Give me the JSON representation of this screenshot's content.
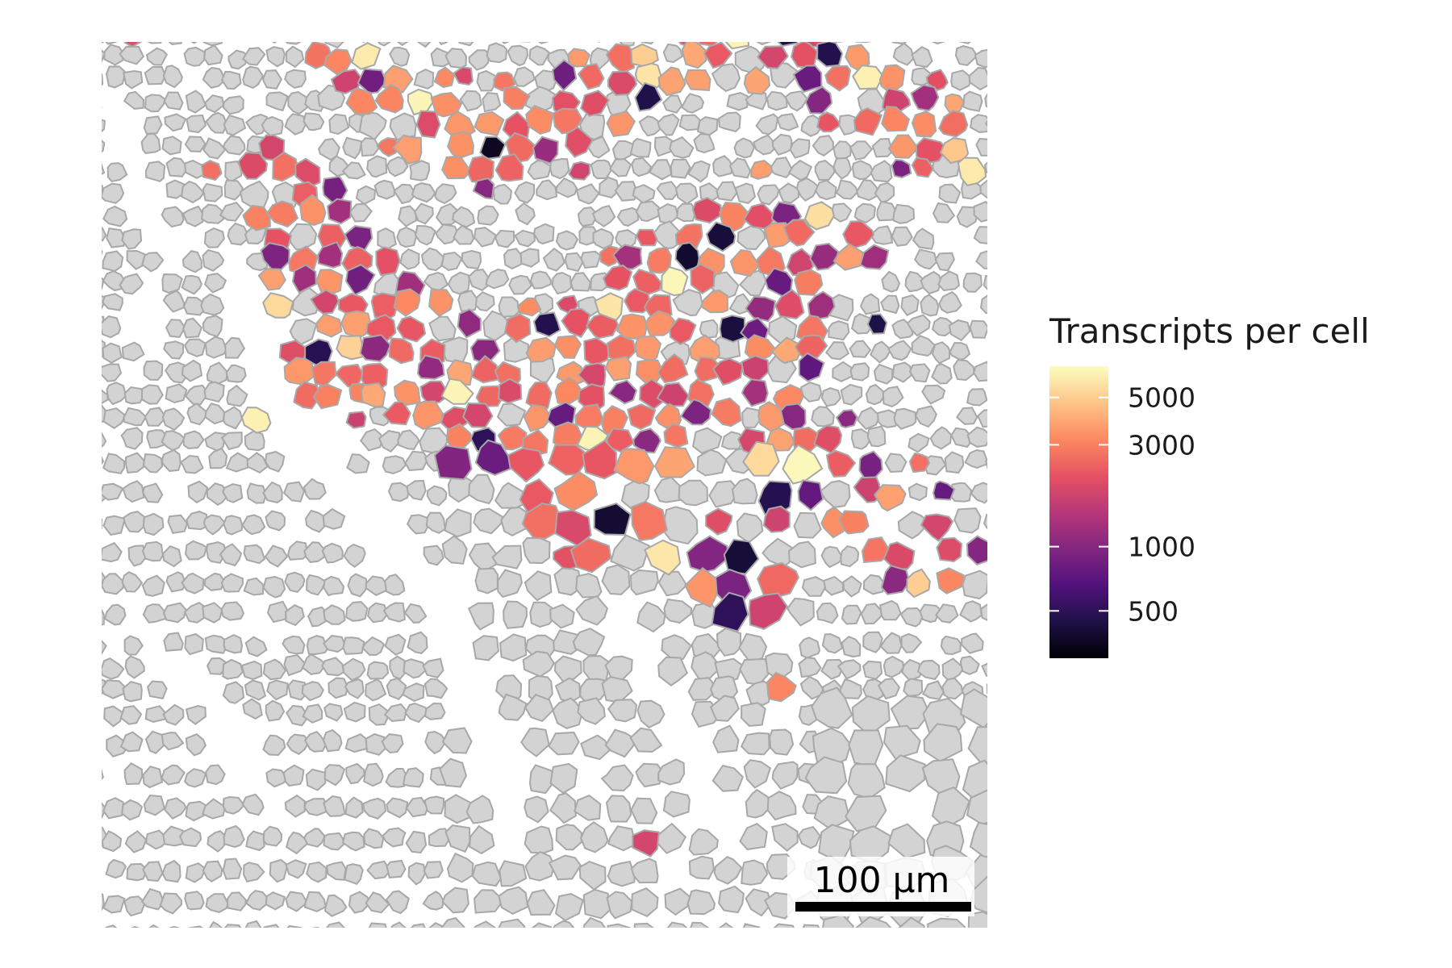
{
  "chart_data": {
    "type": "heatmap",
    "title": "",
    "xlabel": "",
    "ylabel": "",
    "legend": {
      "title": "Transcripts per cell",
      "placement": "right",
      "scale": "log",
      "domain": [
        300,
        7000
      ],
      "ticks": [
        {
          "value": 500,
          "label": "500"
        },
        {
          "value": 1000,
          "label": "1000"
        },
        {
          "value": 3000,
          "label": "3000"
        },
        {
          "value": 5000,
          "label": "5000"
        }
      ],
      "palette": [
        "#000004",
        "#1d1147",
        "#51127c",
        "#822681",
        "#b73779",
        "#e75263",
        "#fc8961",
        "#fec488",
        "#fcfdbf"
      ]
    },
    "unselected_cell_color": "#d3d3d3",
    "cell_border_color": "#a8a8a8",
    "scale_bar": {
      "label": "100 µm",
      "length_um": 100
    }
  }
}
